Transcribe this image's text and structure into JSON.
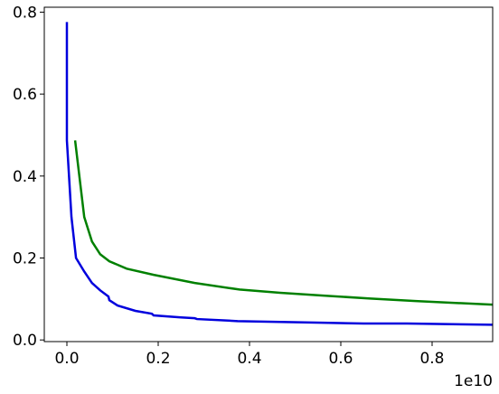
{
  "chart_data": {
    "type": "line",
    "x_offset_label": "1e10",
    "series": [
      {
        "color": "#0000dd",
        "x": [
          0,
          0,
          0.01,
          0.02,
          0.038,
          0.055,
          0.073,
          0.091,
          0.093,
          0.111,
          0.15,
          0.186,
          0.19,
          0.25,
          0.28,
          0.285,
          0.374,
          0.467,
          0.56,
          0.65,
          0.745,
          0.933
        ],
        "values": [
          0.776,
          0.487,
          0.3,
          0.2,
          0.167,
          0.139,
          0.121,
          0.106,
          0.097,
          0.084,
          0.071,
          0.064,
          0.06,
          0.055,
          0.053,
          0.051,
          0.046,
          0.044,
          0.042,
          0.04,
          0.04,
          0.037
        ]
      },
      {
        "color": "#008000",
        "x": [
          0.018,
          0.038,
          0.055,
          0.073,
          0.093,
          0.131,
          0.19,
          0.28,
          0.378,
          0.467,
          0.566,
          0.665,
          0.764,
          0.933
        ],
        "values": [
          0.487,
          0.3,
          0.24,
          0.209,
          0.192,
          0.174,
          0.159,
          0.139,
          0.123,
          0.115,
          0.108,
          0.101,
          0.095,
          0.086
        ]
      }
    ],
    "xlim": [
      -0.0495,
      0.9327
    ],
    "ylim": [
      -0.004,
      0.812
    ],
    "xticks": [
      {
        "value": 0,
        "label": "0.0"
      },
      0.2,
      0.4,
      0.6,
      0.8
    ],
    "yticks": [
      {
        "value": 0,
        "label": "0.0"
      },
      0.2,
      0.4,
      0.6,
      0.8
    ]
  }
}
